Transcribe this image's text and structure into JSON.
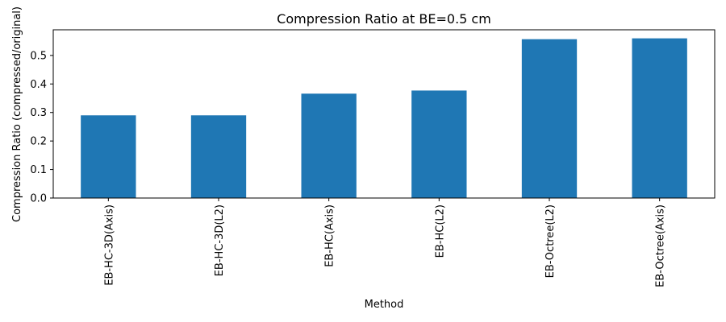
{
  "chart_data": {
    "type": "bar",
    "title": "Compression Ratio at BE=0.5 cm",
    "xlabel": "Method",
    "ylabel": "Compression Ratio (compressed/original)",
    "categories": [
      "EB-HC-3D(Axis)",
      "EB-HC-3D(L2)",
      "EB-HC(Axis)",
      "EB-HC(L2)",
      "EB-Octree(L2)",
      "EB-Octree(Axis)"
    ],
    "values": [
      0.29,
      0.29,
      0.366,
      0.377,
      0.557,
      0.56
    ],
    "ylim": [
      0,
      0.59
    ],
    "yticks": [
      0.0,
      0.1,
      0.2,
      0.3,
      0.4,
      0.5
    ],
    "ytick_labels": [
      "0.0",
      "0.1",
      "0.2",
      "0.3",
      "0.4",
      "0.5"
    ],
    "bar_color": "#1f77b4",
    "grid": false,
    "legend": "none"
  }
}
